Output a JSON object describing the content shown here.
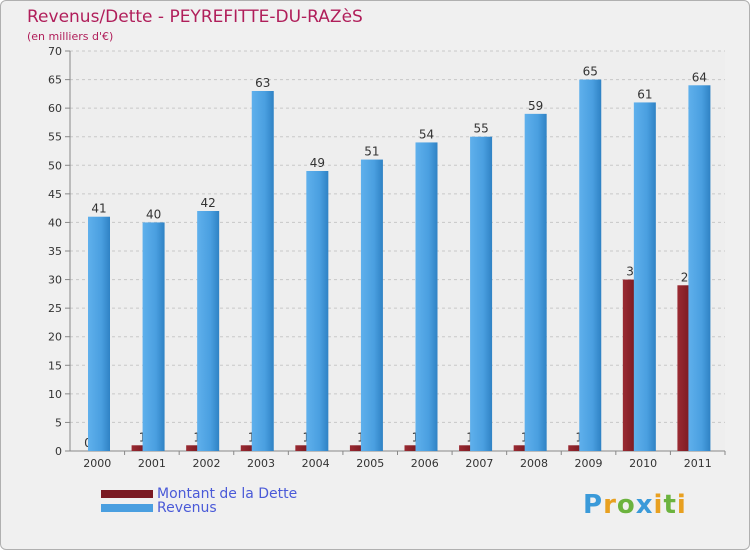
{
  "header": {
    "title": "Revenus/Dette - PEYREFITTE-DU-RAZèS",
    "subtitle": "(en milliers d'€)"
  },
  "legend": {
    "debt_label": "Montant de la Dette",
    "revenue_label": "Revenus"
  },
  "logo": {
    "text": "Proxiti",
    "letters": [
      {
        "char": "P",
        "color": "#3a9ad9"
      },
      {
        "char": "r",
        "color": "#e8a020"
      },
      {
        "char": "o",
        "color": "#6cb33e"
      },
      {
        "char": "x",
        "color": "#3a9ad9"
      },
      {
        "char": "i",
        "color": "#e8a020"
      },
      {
        "char": "t",
        "color": "#6cb33e"
      },
      {
        "char": "i",
        "color": "#e8a020"
      }
    ]
  },
  "colors": {
    "debt": "#7a1a22",
    "revenue": "#4a9fe0",
    "title": "#b01e5a",
    "axis_text": "#333333",
    "grid": "#c8c8c8"
  },
  "chart_data": {
    "type": "bar",
    "title": "Revenus/Dette - PEYREFITTE-DU-RAZèS",
    "subtitle": "(en milliers d'€)",
    "xlabel": "",
    "ylabel": "",
    "ylim": [
      0,
      70
    ],
    "yticks": [
      0,
      5,
      10,
      15,
      20,
      25,
      30,
      35,
      40,
      45,
      50,
      55,
      60,
      65,
      70
    ],
    "grid": true,
    "legend_position": "bottom-left",
    "categories": [
      "2000",
      "2001",
      "2002",
      "2003",
      "2004",
      "2005",
      "2006",
      "2007",
      "2008",
      "2009",
      "2010",
      "2011"
    ],
    "series": [
      {
        "name": "Montant de la Dette",
        "values": [
          0,
          1,
          1,
          1,
          1,
          1,
          1,
          1,
          1,
          1,
          30,
          29
        ]
      },
      {
        "name": "Revenus",
        "values": [
          41,
          40,
          42,
          63,
          49,
          51,
          54,
          55,
          59,
          65,
          61,
          64
        ]
      }
    ]
  }
}
